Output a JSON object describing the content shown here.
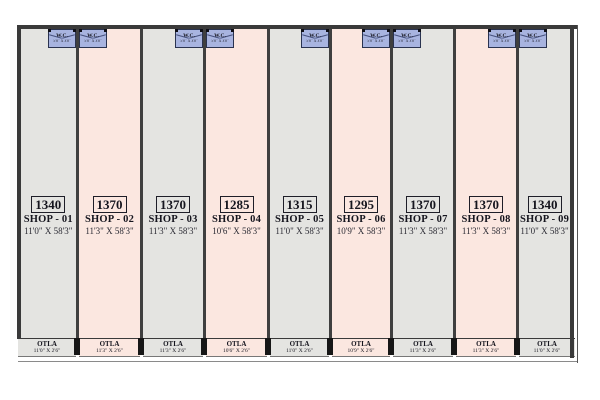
{
  "plan": {
    "wc": {
      "label": "W.C.",
      "dims": "5'0\" X 3'0\""
    },
    "otla_label": "OTLA",
    "colors": {
      "shop_gray": "#e4e4e1",
      "shop_pink": "#fbe7e0",
      "wc_fill": "#a8b4e0",
      "wall": "#3a3a3a"
    },
    "shops": [
      {
        "area": "1340",
        "name": "SHOP - 01",
        "dims": "11'0\" X 58'3\"",
        "otla_dims": "11'0\" X 2'6\"",
        "wc_side": "right",
        "fill": "gray"
      },
      {
        "area": "1370",
        "name": "SHOP - 02",
        "dims": "11'3\" X 58'3\"",
        "otla_dims": "11'3\" X 2'6\"",
        "wc_side": "left",
        "fill": "pink"
      },
      {
        "area": "1370",
        "name": "SHOP - 03",
        "dims": "11'3\" X 58'3\"",
        "otla_dims": "11'3\" X 2'6\"",
        "wc_side": "right",
        "fill": "gray"
      },
      {
        "area": "1285",
        "name": "SHOP - 04",
        "dims": "10'6\" X 58'3\"",
        "otla_dims": "10'6\" X 2'6\"",
        "wc_side": "left",
        "fill": "pink"
      },
      {
        "area": "1315",
        "name": "SHOP - 05",
        "dims": "11'0\" X 58'3\"",
        "otla_dims": "11'0\" X 2'6\"",
        "wc_side": "right",
        "fill": "gray"
      },
      {
        "area": "1295",
        "name": "SHOP - 06",
        "dims": "10'9\" X 58'3\"",
        "otla_dims": "10'9\" X 2'6\"",
        "wc_side": "right",
        "fill": "pink"
      },
      {
        "area": "1370",
        "name": "SHOP - 07",
        "dims": "11'3\" X 58'3\"",
        "otla_dims": "11'3\" X 2'6\"",
        "wc_side": "left",
        "fill": "gray"
      },
      {
        "area": "1370",
        "name": "SHOP - 08",
        "dims": "11'3\" X 58'3\"",
        "otla_dims": "11'3\" X 2'6\"",
        "wc_side": "right",
        "fill": "pink"
      },
      {
        "area": "1340",
        "name": "SHOP - 09",
        "dims": "11'0\" X 58'3\"",
        "otla_dims": "11'0\" X 2'6\"",
        "wc_side": "left",
        "fill": "gray"
      }
    ]
  }
}
